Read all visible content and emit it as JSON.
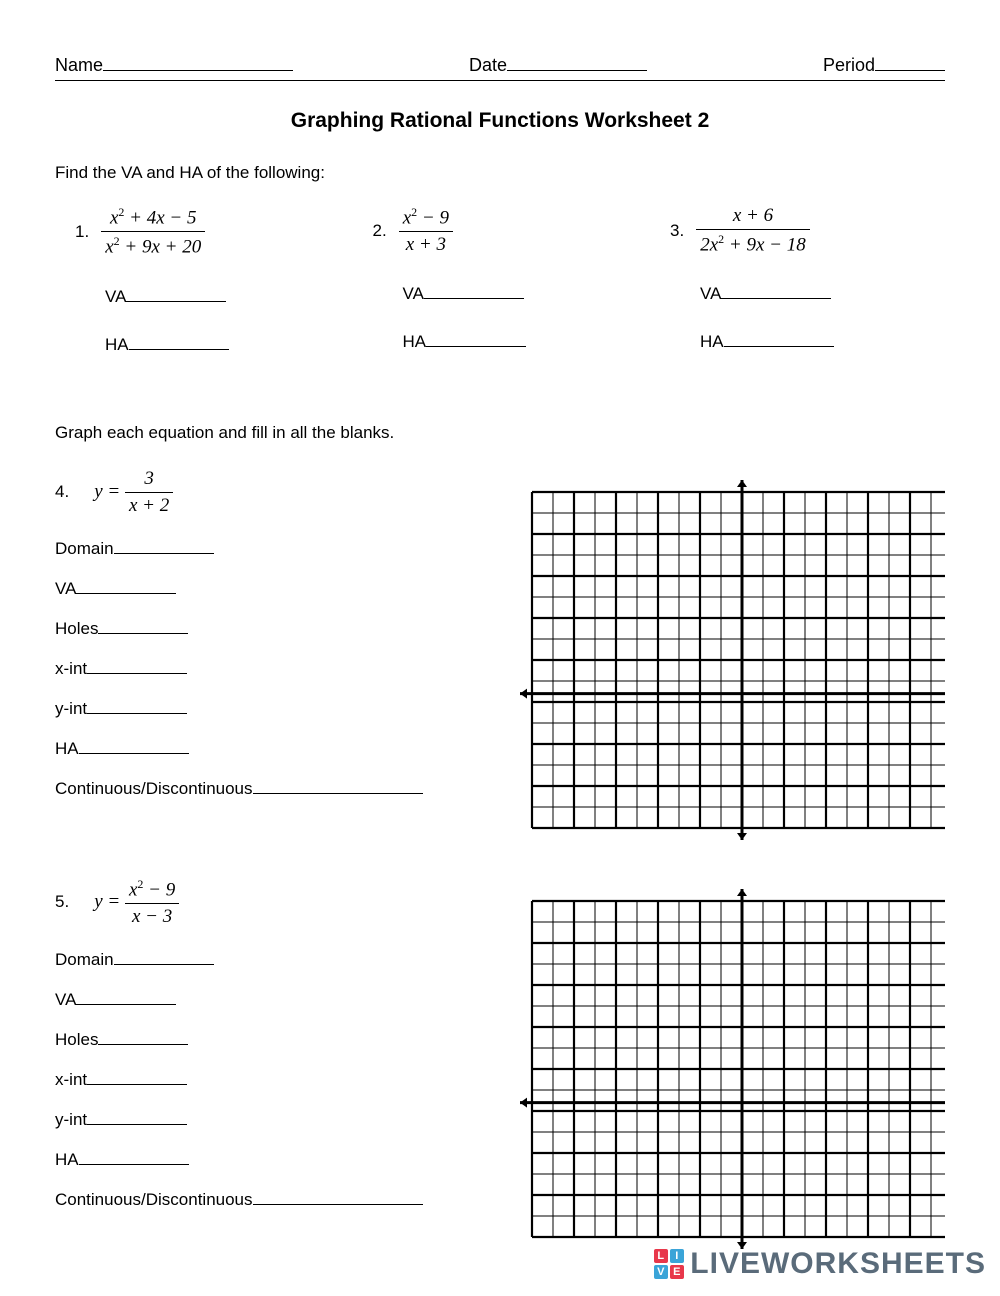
{
  "header": {
    "name_label": "Name",
    "date_label": "Date",
    "period_label": "Period"
  },
  "title": "Graphing Rational Functions Worksheet 2",
  "instr1": "Find the VA and HA of the following:",
  "p1": {
    "n": "1.",
    "num": "x² + 4x − 5",
    "den": "x² + 9x + 20",
    "va": "VA",
    "ha": "HA"
  },
  "p2": {
    "n": "2.",
    "num": "x² − 9",
    "den": "x + 3",
    "va": "VA",
    "ha": "HA"
  },
  "p3": {
    "n": "3.",
    "num": "x + 6",
    "den": "2x² + 9x − 18",
    "va": "VA",
    "ha": "HA"
  },
  "instr2": "Graph each equation and fill in all the blanks.",
  "p4": {
    "n": "4.",
    "y": "y =",
    "num": "3",
    "den": "x + 2"
  },
  "p5": {
    "n": "5.",
    "y": "y =",
    "num": "x² − 9",
    "den": "x − 3"
  },
  "fields": {
    "domain": "Domain",
    "va": "VA",
    "holes": "Holes",
    "xint": "x-int",
    "yint": "y-int",
    "ha": "HA",
    "cont": "Continuous/Discontinuous"
  },
  "grid": {
    "size": 420,
    "cells": 20,
    "axis_y_offset": 0.6,
    "line_color": "#000000",
    "line_thin": 1,
    "line_thick": 2.2,
    "axis": 3
  },
  "watermark": {
    "text": "LIVEWORKSHEETS",
    "badge": [
      {
        "t": "L",
        "c": "#e8374a"
      },
      {
        "t": "I",
        "c": "#3aa4d8"
      },
      {
        "t": "V",
        "c": "#3aa4d8"
      },
      {
        "t": "E",
        "c": "#e8374a"
      }
    ]
  }
}
